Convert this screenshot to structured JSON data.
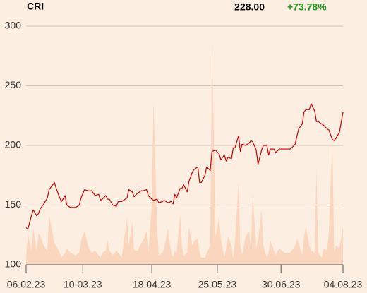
{
  "chart_data": {
    "type": "line",
    "title": "CRI",
    "last_price": "228.00",
    "change": "+73.78%",
    "change_color": "#1a9a1a",
    "x": [
      "2023-02-06",
      "2023-02-07",
      "2023-02-09",
      "2023-02-10",
      "2023-02-12",
      "2023-02-13",
      "2023-02-14",
      "2023-02-16",
      "2023-02-18",
      "2023-02-19",
      "2023-02-22",
      "2023-02-23",
      "2023-02-25",
      "2023-02-26",
      "2023-02-28",
      "2023-03-01",
      "2023-03-03",
      "2023-03-06",
      "2023-03-08",
      "2023-03-09",
      "2023-03-11",
      "2023-03-13",
      "2023-03-15",
      "2023-03-17",
      "2023-03-19",
      "2023-03-20",
      "2023-03-21",
      "2023-03-23",
      "2023-03-24",
      "2023-03-25",
      "2023-03-27",
      "2023-03-29",
      "2023-03-30",
      "2023-04-01",
      "2023-04-04",
      "2023-04-05",
      "2023-04-07",
      "2023-04-08",
      "2023-04-10",
      "2023-04-12",
      "2023-04-13",
      "2023-04-15",
      "2023-04-16",
      "2023-04-18",
      "2023-04-19",
      "2023-04-21",
      "2023-04-22",
      "2023-04-24",
      "2023-04-25",
      "2023-04-27",
      "2023-04-29",
      "2023-04-30",
      "2023-05-01",
      "2023-05-02",
      "2023-05-04",
      "2023-05-05",
      "2023-05-06",
      "2023-05-08",
      "2023-05-09",
      "2023-05-11",
      "2023-05-12",
      "2023-05-14",
      "2023-05-15",
      "2023-05-16",
      "2023-05-18",
      "2023-05-19",
      "2023-05-21",
      "2023-05-22",
      "2023-05-24",
      "2023-05-26",
      "2023-05-27",
      "2023-05-29",
      "2023-05-30",
      "2023-05-31",
      "2023-06-02",
      "2023-06-03",
      "2023-06-04",
      "2023-06-06",
      "2023-06-07",
      "2023-06-08",
      "2023-06-10",
      "2023-06-12",
      "2023-06-13",
      "2023-06-14",
      "2023-06-16",
      "2023-06-17",
      "2023-06-19",
      "2023-06-20",
      "2023-06-22",
      "2023-06-23",
      "2023-06-24",
      "2023-06-26",
      "2023-06-27",
      "2023-06-29",
      "2023-07-02",
      "2023-07-05",
      "2023-07-06",
      "2023-07-08",
      "2023-07-09",
      "2023-07-10",
      "2023-07-12",
      "2023-07-13",
      "2023-07-14",
      "2023-07-16",
      "2023-07-17",
      "2023-07-19",
      "2023-07-20",
      "2023-07-21",
      "2023-07-23",
      "2023-07-24",
      "2023-07-26",
      "2023-07-27",
      "2023-07-29",
      "2023-07-30",
      "2023-07-31",
      "2023-08-02",
      "2023-08-04"
    ],
    "series": [
      {
        "type": "line",
        "color": "#cc0000",
        "values": [
          131,
          130,
          141,
          146,
          141,
          143,
          147,
          151,
          156,
          163,
          169,
          164,
          156,
          153,
          158,
          150,
          148,
          148,
          150,
          156,
          163,
          162,
          162,
          158,
          159,
          154,
          155,
          158,
          155,
          155,
          150,
          149,
          153,
          153,
          156,
          163,
          161,
          157,
          160,
          162,
          162,
          163,
          158,
          155,
          154,
          155,
          152,
          153,
          154,
          152,
          153,
          151,
          159,
          156,
          164,
          164,
          167,
          161,
          170,
          178,
          180,
          182,
          169,
          169,
          175,
          182,
          179,
          195,
          196,
          193,
          188,
          192,
          187,
          190,
          189,
          198,
          198,
          208,
          195,
          201,
          200,
          202,
          204,
          203,
          196,
          184,
          196,
          200,
          200,
          192,
          197,
          197,
          194,
          197,
          197,
          197,
          198,
          201,
          208,
          214,
          218,
          228,
          230,
          230,
          235,
          229,
          220,
          220,
          218,
          217,
          214,
          213,
          205,
          204,
          206,
          211,
          228
        ]
      },
      {
        "type": "area",
        "axis": "y2",
        "color": "#f9d6bd",
        "values": [
          3,
          13,
          6,
          15,
          6,
          13,
          12,
          8,
          6,
          21,
          9,
          8,
          5,
          3,
          5,
          7,
          5,
          4,
          5,
          10,
          14,
          8,
          5,
          6,
          4,
          3,
          5,
          6,
          10,
          6,
          4,
          6,
          5,
          3,
          20,
          8,
          18,
          6,
          6,
          9,
          10,
          14,
          5,
          25,
          68,
          15,
          4,
          5,
          7,
          15,
          5,
          3,
          6,
          5,
          21,
          8,
          4,
          5,
          16,
          8,
          10,
          11,
          5,
          3,
          3,
          5,
          8,
          94,
          12,
          20,
          11,
          3,
          7,
          12,
          8,
          3,
          10,
          35,
          8,
          4,
          12,
          14,
          6,
          30,
          7,
          10,
          23,
          8,
          3,
          5,
          10,
          6,
          4,
          7,
          5,
          5,
          6,
          8,
          11,
          9,
          4,
          12,
          16,
          8,
          6,
          5,
          40,
          5,
          3,
          7,
          6,
          14,
          52,
          5,
          8,
          7,
          16
        ]
      }
    ],
    "xlim": [
      "2023-02-06",
      "2023-08-04"
    ],
    "xticks": [
      {
        "value": "2023-02-06",
        "label": "06.02.23"
      },
      {
        "value": "2023-03-10",
        "label": "10.03.23"
      },
      {
        "value": "2023-04-18",
        "label": "18.04.23"
      },
      {
        "value": "2023-05-25",
        "label": "25.05.23"
      },
      {
        "value": "2023-06-30",
        "label": "30.06.23"
      },
      {
        "value": "2023-08-04",
        "label": "04.08.23"
      }
    ],
    "ylim": [
      100,
      300
    ],
    "yticks": [
      100,
      150,
      200,
      250,
      300
    ],
    "y2lim": [
      0,
      100
    ],
    "grid": true
  }
}
